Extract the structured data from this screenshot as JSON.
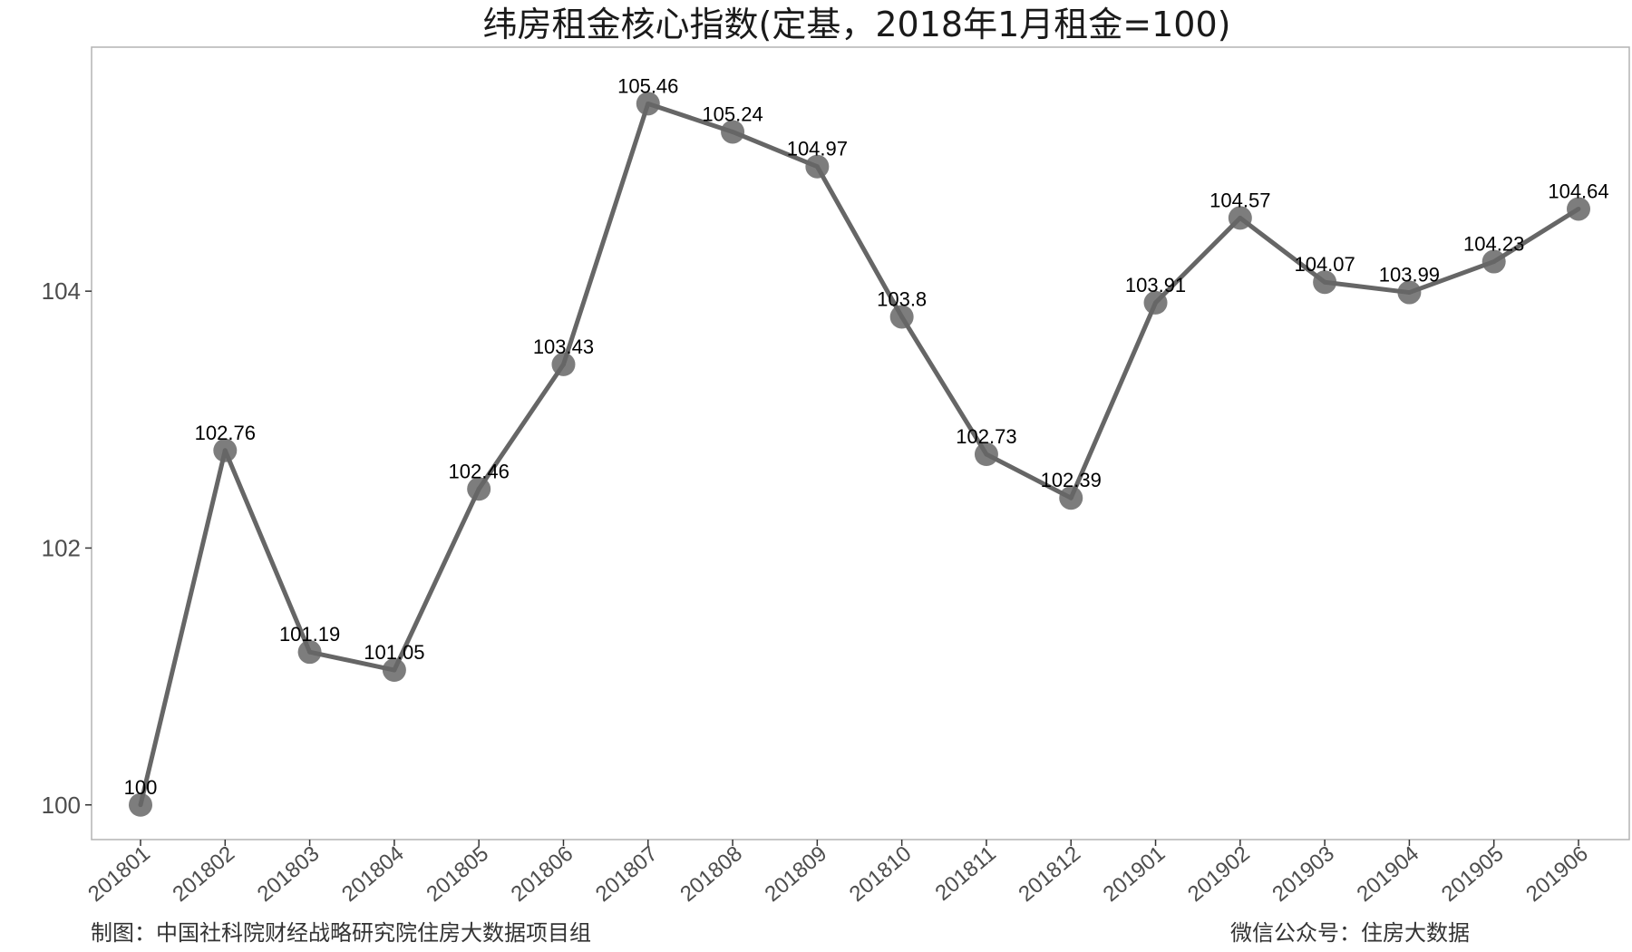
{
  "chart_data": {
    "type": "line",
    "title": "纬房租金核心指数(定基，2018年1月租金=100)",
    "xlabel": "",
    "ylabel": "",
    "categories": [
      "201801",
      "201802",
      "201803",
      "201804",
      "201805",
      "201806",
      "201807",
      "201808",
      "201809",
      "201810",
      "201811",
      "201812",
      "201901",
      "201902",
      "201903",
      "201904",
      "201905",
      "201906"
    ],
    "series": [
      {
        "values": [
          100,
          102.76,
          101.19,
          101.05,
          102.46,
          103.43,
          105.46,
          105.24,
          104.97,
          103.8,
          102.73,
          102.39,
          103.91,
          104.57,
          104.07,
          103.99,
          104.23,
          104.64
        ],
        "data_labels": [
          "100",
          "102.76",
          "101.19",
          "101.05",
          "102.46",
          "103.43",
          "105.46",
          "105.24",
          "104.97",
          "103.8",
          "102.73",
          "102.39",
          "103.91",
          "104.57",
          "104.07",
          "103.99",
          "104.23",
          "104.64"
        ]
      }
    ],
    "yticks": [
      100,
      102,
      104
    ],
    "ytick_labels": [
      "100",
      "102",
      "104"
    ],
    "ylim": [
      99.73,
      105.9
    ],
    "grid": false,
    "legend": "none",
    "colors": {
      "line": "#666666",
      "point": "#666666",
      "axis": "#b3b3b3",
      "text": "#4d4d4d"
    }
  },
  "footer": {
    "left": "制图：中国社科院财经战略研究院住房大数据项目组",
    "right": "微信公众号：住房大数据"
  }
}
